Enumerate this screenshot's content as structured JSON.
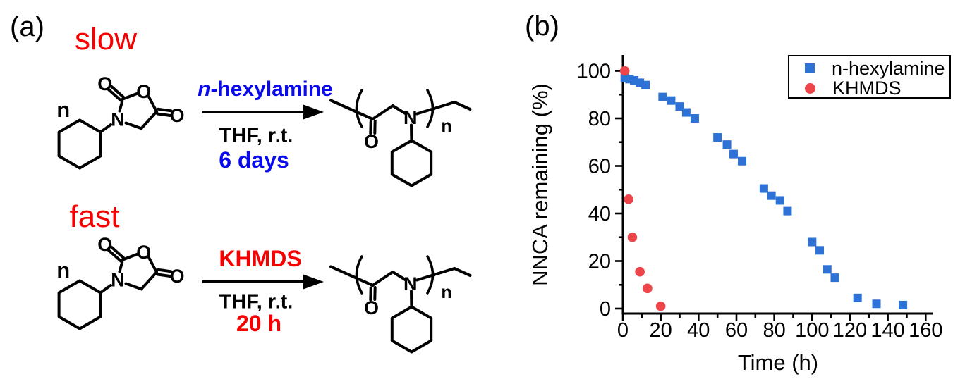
{
  "figure": {
    "panel_a_label": "(a)",
    "panel_b_label": "(b)"
  },
  "scheme": {
    "reaction_slow": {
      "rate_label": "slow",
      "reagent_italic_prefix": "n",
      "reagent_rest": "-hexylamine",
      "conditions": "THF, r.t.",
      "time": "6 days"
    },
    "reaction_fast": {
      "rate_label": "fast",
      "reagent": "KHMDS",
      "conditions": "THF, r.t.",
      "time": "20 h"
    },
    "monomer_repeat_label": "n",
    "polymer_repeat_label": "n",
    "atom_labels": {
      "oxygen": "O",
      "nitrogen": "N"
    }
  },
  "colors": {
    "scheme_red_text": "#f70000",
    "scheme_blue_text": "#0a0af0",
    "chart_blue": "#2d72d4",
    "chart_red": "#ed4549",
    "axis_black": "#000000"
  },
  "chart_data": {
    "type": "scatter",
    "title": "",
    "xlabel": "Time (h)",
    "ylabel": "NNCA remaining (%)",
    "xlim": [
      0,
      160
    ],
    "ylim": [
      0,
      100
    ],
    "xticks": [
      0,
      20,
      40,
      60,
      80,
      100,
      120,
      140,
      160
    ],
    "yticks": [
      0,
      20,
      40,
      60,
      80,
      100
    ],
    "xtick_minor_step": 10,
    "ytick_minor_step": 10,
    "grid": false,
    "legend_position": "top-right-inside",
    "series": [
      {
        "name": "n-hexylamine",
        "marker": "square",
        "color": "#2d72d4",
        "points": [
          [
            1,
            97
          ],
          [
            3.5,
            96.5
          ],
          [
            6,
            96
          ],
          [
            9,
            95
          ],
          [
            12,
            94
          ],
          [
            21,
            89
          ],
          [
            25.5,
            87.5
          ],
          [
            30,
            85
          ],
          [
            33.5,
            82.5
          ],
          [
            38,
            80
          ],
          [
            50,
            72
          ],
          [
            55,
            69
          ],
          [
            58.5,
            65
          ],
          [
            63,
            62
          ],
          [
            74.5,
            50.5
          ],
          [
            78.5,
            47.5
          ],
          [
            83,
            45.5
          ],
          [
            87,
            41
          ],
          [
            100,
            28
          ],
          [
            104,
            24.5
          ],
          [
            108,
            16.5
          ],
          [
            112,
            13
          ],
          [
            124,
            4.5
          ],
          [
            134,
            2
          ],
          [
            148,
            1.5
          ]
        ]
      },
      {
        "name": "KHMDS",
        "marker": "circle",
        "color": "#ed4549",
        "points": [
          [
            1,
            100
          ],
          [
            3,
            46
          ],
          [
            5,
            30
          ],
          [
            9,
            15.5
          ],
          [
            13,
            8.5
          ],
          [
            20,
            1
          ]
        ]
      }
    ]
  }
}
